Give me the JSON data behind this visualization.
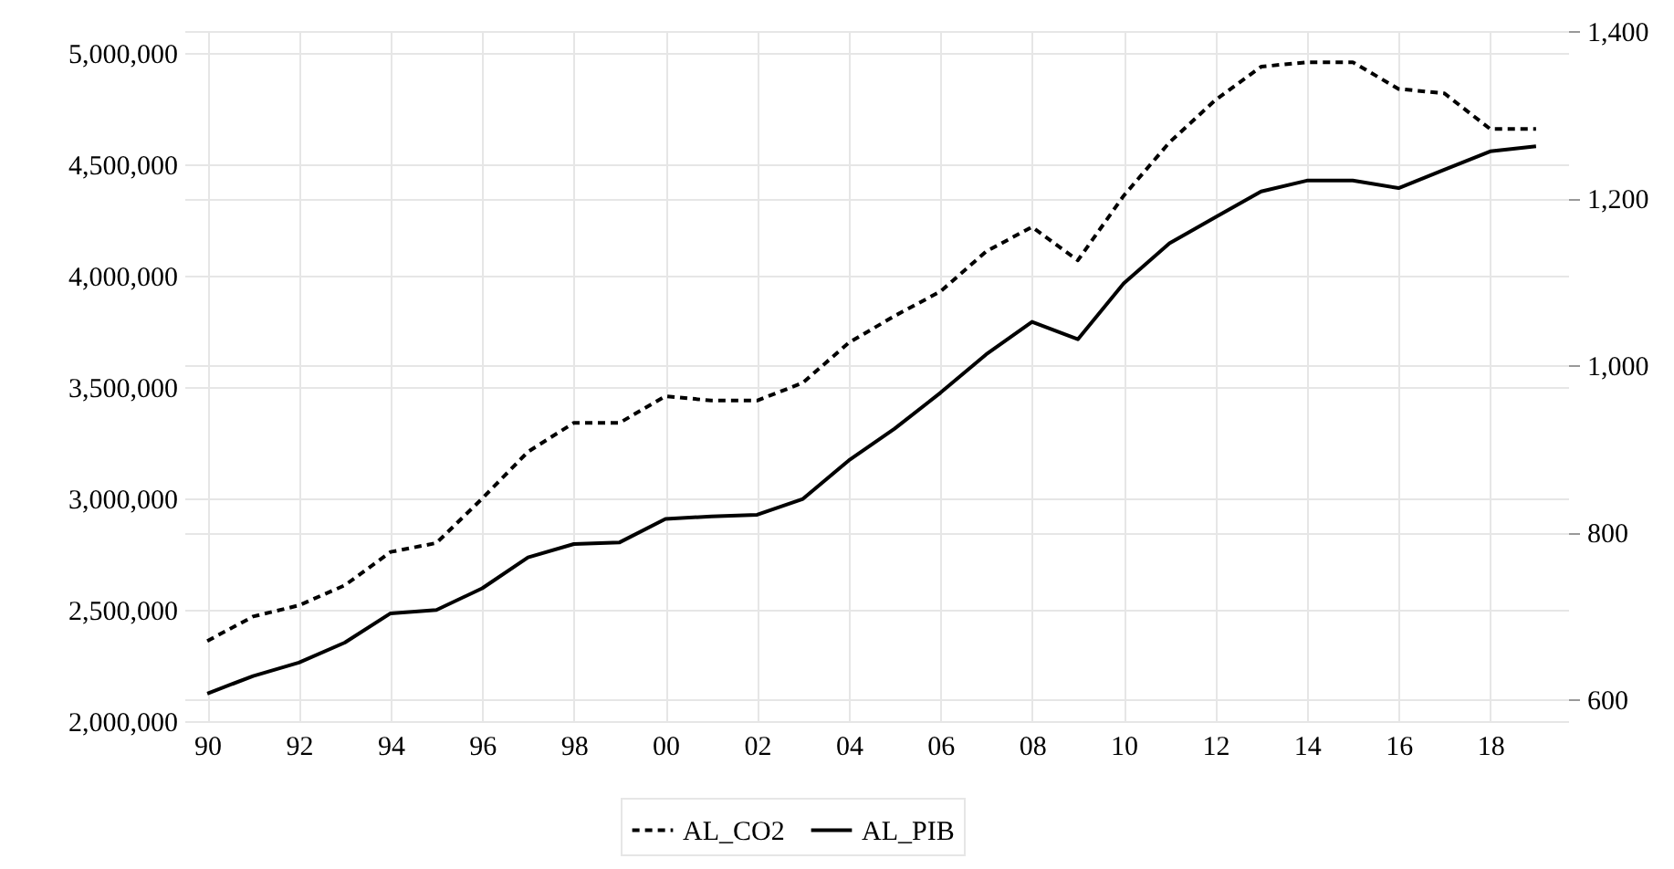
{
  "chart_data": {
    "type": "line",
    "x": [
      1990,
      1991,
      1992,
      1993,
      1994,
      1995,
      1996,
      1997,
      1998,
      1999,
      2000,
      2001,
      2002,
      2003,
      2004,
      2005,
      2006,
      2007,
      2008,
      2009,
      2010,
      2011,
      2012,
      2013,
      2014,
      2015,
      2016,
      2017,
      2018,
      2019
    ],
    "series": [
      {
        "name": "AL_CO2",
        "color": "#000000",
        "line_style": "dashed",
        "values": [
          2360000,
          2470000,
          2520000,
          2610000,
          2760000,
          2800000,
          3000000,
          3210000,
          3340000,
          3340000,
          3460000,
          3440000,
          3440000,
          3520000,
          3700000,
          3820000,
          3930000,
          4110000,
          4220000,
          4070000,
          4360000,
          4600000,
          4790000,
          4940000,
          4960000,
          4960000,
          4840000,
          4820000,
          4660000,
          4660000
        ]
      },
      {
        "name": "AL_PIB",
        "color": "#000000",
        "line_style": "solid",
        "axis": "y2",
        "values": [
          607,
          628,
          644,
          668,
          703,
          707,
          733,
          770,
          786,
          788,
          816,
          819,
          821,
          840,
          886,
          924,
          967,
          1013,
          1052,
          1031,
          1098,
          1146,
          1177,
          1208,
          1221,
          1221,
          1212,
          1234,
          1256,
          1262
        ]
      }
    ],
    "xlim": [
      1989.5,
      2019.7
    ],
    "xticks": [
      {
        "value": 1990,
        "label": "90"
      },
      {
        "value": 1992,
        "label": "92"
      },
      {
        "value": 1994,
        "label": "94"
      },
      {
        "value": 1996,
        "label": "96"
      },
      {
        "value": 1998,
        "label": "98"
      },
      {
        "value": 2000,
        "label": "00"
      },
      {
        "value": 2002,
        "label": "02"
      },
      {
        "value": 2004,
        "label": "04"
      },
      {
        "value": 2006,
        "label": "06"
      },
      {
        "value": 2008,
        "label": "08"
      },
      {
        "value": 2010,
        "label": "10"
      },
      {
        "value": 2012,
        "label": "12"
      },
      {
        "value": 2014,
        "label": "14"
      },
      {
        "value": 2016,
        "label": "16"
      },
      {
        "value": 2018,
        "label": "18"
      }
    ],
    "ylim": [
      2000000,
      5100000
    ],
    "yticks": [
      {
        "value": 2000000,
        "label": "2,000,000"
      },
      {
        "value": 2500000,
        "label": "2,500,000"
      },
      {
        "value": 3000000,
        "label": "3,000,000"
      },
      {
        "value": 3500000,
        "label": "3,500,000"
      },
      {
        "value": 4000000,
        "label": "4,000,000"
      },
      {
        "value": 4500000,
        "label": "4,500,000"
      },
      {
        "value": 5000000,
        "label": "5,000,000"
      }
    ],
    "y2lim": [
      574,
      1400
    ],
    "y2ticks": [
      {
        "value": 600,
        "label": "600"
      },
      {
        "value": 800,
        "label": "800"
      },
      {
        "value": 1000,
        "label": "1,000"
      },
      {
        "value": 1200,
        "label": "1,200"
      },
      {
        "value": 1400,
        "label": "1,400"
      }
    ],
    "grid": true,
    "legend": "bottom"
  }
}
